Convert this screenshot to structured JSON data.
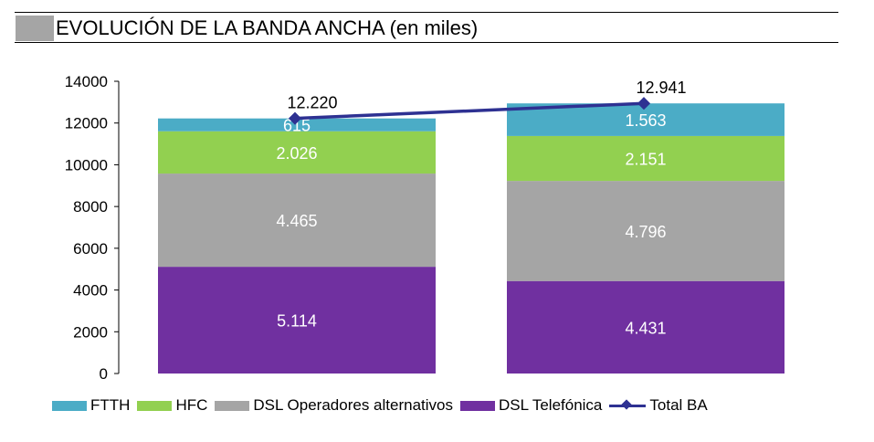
{
  "title": "EVOLUCIÓN DE LA BANDA ANCHA (en miles)",
  "chart_data": {
    "type": "bar",
    "stacked": true,
    "title": "EVOLUCIÓN DE LA BANDA ANCHA (en miles)",
    "xlabel": "",
    "ylabel": "",
    "ylim": [
      0,
      14000
    ],
    "yticks": [
      0,
      2000,
      4000,
      6000,
      8000,
      10000,
      12000,
      14000
    ],
    "grid": false,
    "legend_position": "bottom",
    "series": [
      {
        "name": "DSL Telefónica",
        "color": "#7030a0",
        "values": [
          5114,
          4431
        ],
        "labels": [
          "5.114",
          "4.431"
        ]
      },
      {
        "name": "DSL Operadores alternativos",
        "color": "#a5a5a5",
        "values": [
          4465,
          4796
        ],
        "labels": [
          "4.465",
          "4.796"
        ]
      },
      {
        "name": "HFC",
        "color": "#92d050",
        "values": [
          2026,
          2151
        ],
        "labels": [
          "2.026",
          "2.151"
        ]
      },
      {
        "name": "FTTH",
        "color": "#4bacc6",
        "values": [
          615,
          1563
        ],
        "labels": [
          "615",
          "1.563"
        ]
      }
    ],
    "line_series": {
      "name": "Total BA",
      "color": "#2e3192",
      "values": [
        12220,
        12941
      ],
      "labels": [
        "12.220",
        "12.941"
      ]
    },
    "legend": [
      "FTTH",
      "HFC",
      "DSL Operadores alternativos",
      "DSL Telefónica",
      "Total BA"
    ]
  }
}
